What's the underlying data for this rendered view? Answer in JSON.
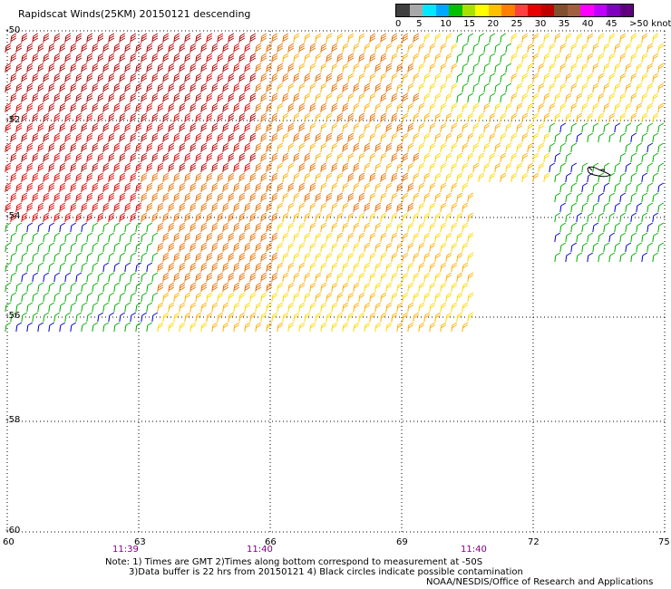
{
  "title": "Rapidscat Winds(25KM) 20150121 descending",
  "legend": {
    "ticks": [
      "0",
      "5",
      "10",
      "15",
      "20",
      "25",
      "30",
      "35",
      "40",
      "45",
      ">50 knots"
    ],
    "colors": [
      "#404040",
      "#a8a8a8",
      "#00e8ff",
      "#00a8ff",
      "#00c000",
      "#a8e000",
      "#ffff00",
      "#ffc000",
      "#ff8000",
      "#ff4040",
      "#e80000",
      "#c00000",
      "#805030",
      "#a06040",
      "#ff00ff",
      "#c000ff",
      "#8000c0",
      "#600080"
    ]
  },
  "map": {
    "lat_labels": [
      "-50",
      "-52",
      "-54",
      "-56",
      "-58",
      "-60"
    ],
    "lon_labels": [
      "60",
      "63",
      "66",
      "69",
      "72",
      "75"
    ],
    "times": [
      "11:39",
      "11:40",
      "11:40"
    ]
  },
  "notes": {
    "line1": "Note: 1) Times are GMT 2)Times along bottom correspond to measurement at -50S",
    "line2": "3)Data buffer is 22 hrs from 20150121 4) Black circles indicate possible contamination"
  },
  "credit": "NOAA/NESDIS/Office of Research and Applications"
}
